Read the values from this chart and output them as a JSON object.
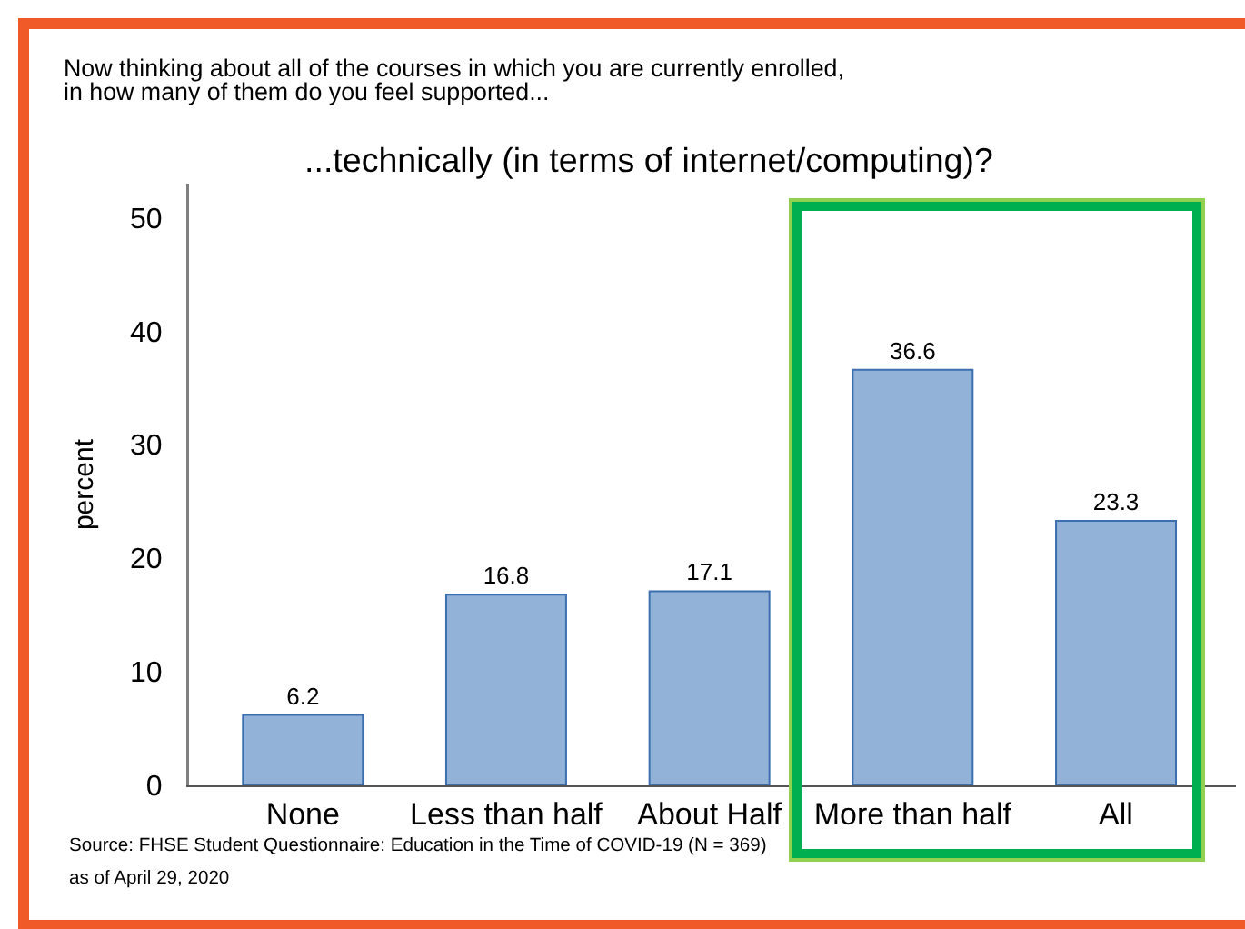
{
  "chart_data": {
    "type": "bar",
    "title": "...technically (in terms of internet/computing)?",
    "subtitle": "Now thinking about all of the courses in which you are currently enrolled,\nin how many of them do you feel supported...",
    "ylabel": "percent",
    "categories": [
      "None",
      "Less than half",
      "About Half",
      "More than half",
      "All"
    ],
    "values": [
      6.2,
      16.8,
      17.1,
      36.6,
      23.3
    ],
    "color": "#92b2d7",
    "data_labels": true,
    "ylim": [
      0,
      53
    ],
    "yticks": [
      0,
      10,
      20,
      30,
      40,
      50
    ],
    "annotations": [
      "Source: FHSE Student Questionnaire: Education in the Time of COVID-19 (N = 369)",
      "as of April 29, 2020"
    ]
  }
}
